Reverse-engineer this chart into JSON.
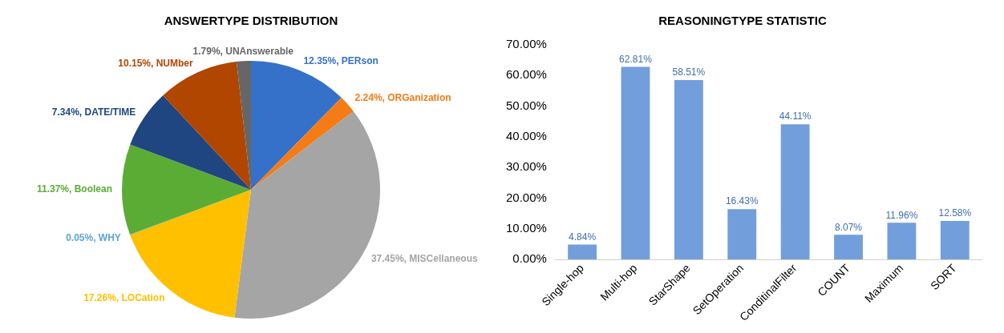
{
  "chart_data": [
    {
      "type": "pie",
      "title": "ANSWERTYPE DISTRIBUTION",
      "categories": [
        "PERson",
        "ORGanization",
        "MISCellaneous",
        "LOCation",
        "WHY",
        "Boolean",
        "DATE/TIME",
        "NUMber",
        "UNAnswerable"
      ],
      "values": [
        12.35,
        2.24,
        37.45,
        17.26,
        0.05,
        11.37,
        7.34,
        10.15,
        1.79
      ],
      "colors": [
        "#3571c9",
        "#f47b16",
        "#a5a5a5",
        "#ffc000",
        "#5ba4da",
        "#5bac35",
        "#1f4680",
        "#b04600",
        "#666666"
      ],
      "value_labels": [
        "12.35%",
        "2.24%",
        "37.45%",
        "17.26%",
        "0.05%",
        "11.37%",
        "7.34%",
        "10.15%",
        "1.79%"
      ]
    },
    {
      "type": "bar",
      "title": "REASONINGTYPE STATISTIC",
      "categories": [
        "Single-hop",
        "Multi-hop",
        "StarShape",
        "SetOperation",
        "ConditinalFilter",
        "COUNT",
        "Maximum",
        "SORT"
      ],
      "values": [
        4.84,
        62.81,
        58.51,
        16.43,
        44.11,
        8.07,
        11.96,
        12.58
      ],
      "color": "#729fdc",
      "value_labels": [
        "4.84%",
        "62.81%",
        "58.51%",
        "16.43%",
        "44.11%",
        "8.07%",
        "11.96%",
        "12.58%"
      ],
      "ylim": [
        0,
        70
      ],
      "yticks": [
        {
          "value": 0,
          "label": "0.00%"
        },
        {
          "value": 10,
          "label": "10.00%"
        },
        {
          "value": 20,
          "label": "20.00%"
        },
        {
          "value": 30,
          "label": "30.00%"
        },
        {
          "value": 40,
          "label": "40.00%"
        },
        {
          "value": 50,
          "label": "50.00%"
        },
        {
          "value": 60,
          "label": "60.00%"
        },
        {
          "value": 70,
          "label": "70.00%"
        }
      ]
    }
  ]
}
